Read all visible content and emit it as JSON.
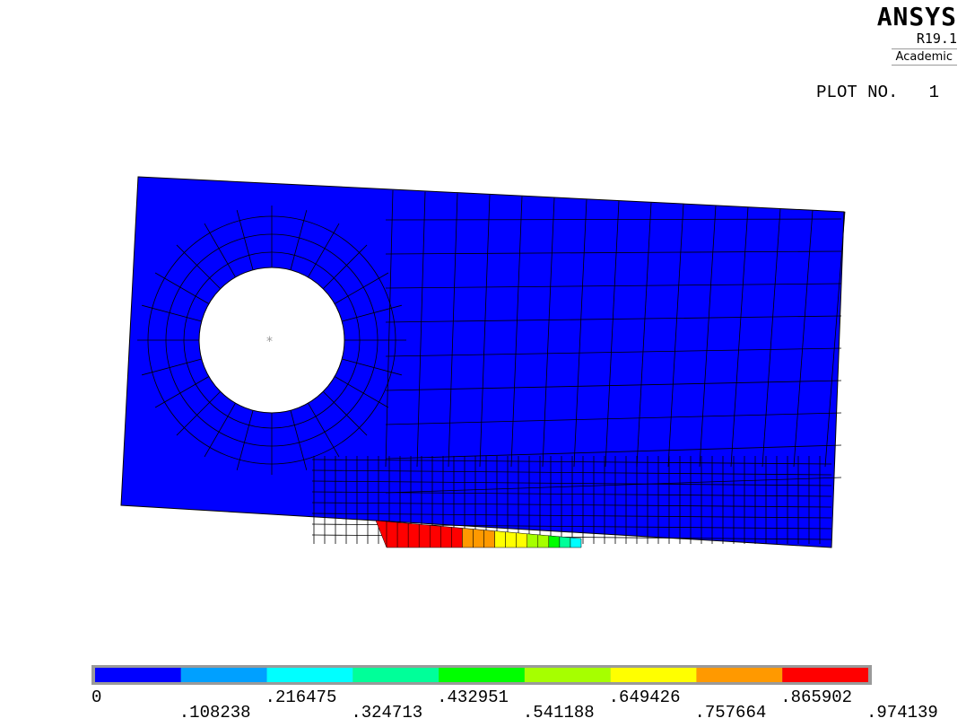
{
  "brand": {
    "name": "ANSYS",
    "version": "R19.1",
    "edition": "Academic"
  },
  "plot": {
    "label": "PLOT NO.",
    "number": "1"
  },
  "chart_data": {
    "type": "heatmap",
    "legend_placement": "bottom",
    "contour_values": [
      "0",
      ".108238",
      ".216475",
      ".324713",
      ".432951",
      ".541188",
      ".649426",
      ".757664",
      ".865902",
      ".974139"
    ],
    "range": [
      0,
      0.974139
    ],
    "bands": [
      {
        "from": 0,
        "to": 0.108238,
        "color": "#0000ff"
      },
      {
        "from": 0.108238,
        "to": 0.216475,
        "color": "#00a0ff"
      },
      {
        "from": 0.216475,
        "to": 0.324713,
        "color": "#00ffff"
      },
      {
        "from": 0.324713,
        "to": 0.432951,
        "color": "#00ff99"
      },
      {
        "from": 0.432951,
        "to": 0.541188,
        "color": "#00ff00"
      },
      {
        "from": 0.541188,
        "to": 0.649426,
        "color": "#a6ff00"
      },
      {
        "from": 0.649426,
        "to": 0.757664,
        "color": "#ffff00"
      },
      {
        "from": 0.757664,
        "to": 0.865902,
        "color": "#ff9900"
      },
      {
        "from": 0.865902,
        "to": 0.974139,
        "color": "#ff0000"
      }
    ]
  }
}
